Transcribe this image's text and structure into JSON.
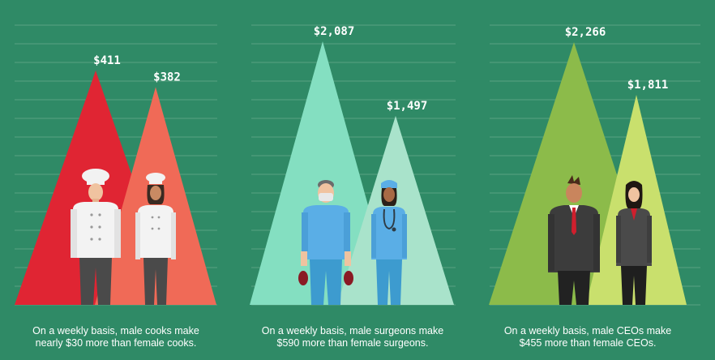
{
  "colors": {
    "background": "#2f8a66",
    "grid": "#5aa383",
    "panel1": {
      "male": "#e02533",
      "female": "#f06a57"
    },
    "panel2": {
      "male": "#84dfc1",
      "female": "#a9e3cb"
    },
    "panel3": {
      "male": "#8cbb4a",
      "female": "#c9e06d"
    }
  },
  "chart_data": [
    {
      "type": "bar",
      "categories": [
        "male cooks",
        "female cooks"
      ],
      "values": [
        411,
        382
      ],
      "value_labels": [
        "$411",
        "$382"
      ],
      "caption": [
        "On a weekly basis, male cooks make",
        "nearly $30 more than female cooks."
      ],
      "icons": [
        "male-chef-figure",
        "female-chef-figure"
      ]
    },
    {
      "type": "bar",
      "categories": [
        "male surgeons",
        "female surgeons"
      ],
      "values": [
        2087,
        1497
      ],
      "value_labels": [
        "$2,087",
        "$1,497"
      ],
      "caption": [
        "On a weekly basis, male surgeons make",
        "$590 more than female surgeons."
      ],
      "icons": [
        "male-surgeon-figure",
        "female-surgeon-figure"
      ]
    },
    {
      "type": "bar",
      "categories": [
        "male CEOs",
        "female CEOs"
      ],
      "values": [
        2266,
        1811
      ],
      "value_labels": [
        "$2,266",
        "$1,811"
      ],
      "caption": [
        "On a weekly basis, male CEOs make",
        "$455 more than female CEOs."
      ],
      "icons": [
        "male-ceo-figure",
        "female-ceo-figure"
      ]
    }
  ]
}
